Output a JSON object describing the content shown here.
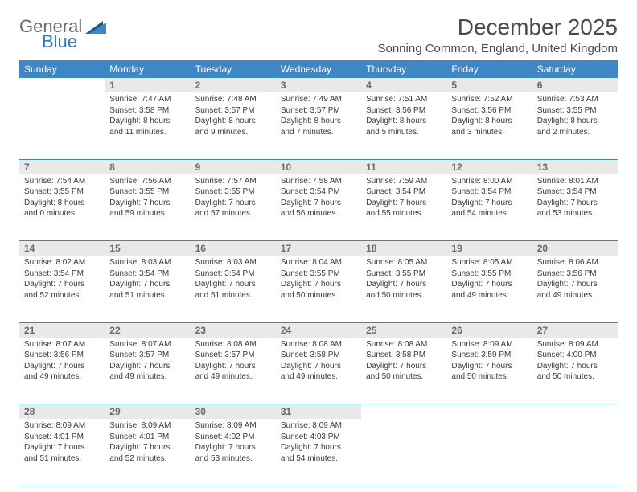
{
  "logo": {
    "general": "General",
    "blue": "Blue"
  },
  "title": "December 2025",
  "location": "Sonning Common, England, United Kingdom",
  "colors": {
    "header_bg": "#3f86c7",
    "header_fg": "#ffffff",
    "daynum_bg": "#e9e9e9",
    "border": "#3f86c7",
    "logo_gray": "#6a6a6a",
    "logo_blue": "#2b7bbd"
  },
  "weekdays": [
    "Sunday",
    "Monday",
    "Tuesday",
    "Wednesday",
    "Thursday",
    "Friday",
    "Saturday"
  ],
  "weeks": [
    [
      null,
      {
        "n": "1",
        "sr": "7:47 AM",
        "ss": "3:58 PM",
        "dl": "8 hours and 11 minutes."
      },
      {
        "n": "2",
        "sr": "7:48 AM",
        "ss": "3:57 PM",
        "dl": "8 hours and 9 minutes."
      },
      {
        "n": "3",
        "sr": "7:49 AM",
        "ss": "3:57 PM",
        "dl": "8 hours and 7 minutes."
      },
      {
        "n": "4",
        "sr": "7:51 AM",
        "ss": "3:56 PM",
        "dl": "8 hours and 5 minutes."
      },
      {
        "n": "5",
        "sr": "7:52 AM",
        "ss": "3:56 PM",
        "dl": "8 hours and 3 minutes."
      },
      {
        "n": "6",
        "sr": "7:53 AM",
        "ss": "3:55 PM",
        "dl": "8 hours and 2 minutes."
      }
    ],
    [
      {
        "n": "7",
        "sr": "7:54 AM",
        "ss": "3:55 PM",
        "dl": "8 hours and 0 minutes."
      },
      {
        "n": "8",
        "sr": "7:56 AM",
        "ss": "3:55 PM",
        "dl": "7 hours and 59 minutes."
      },
      {
        "n": "9",
        "sr": "7:57 AM",
        "ss": "3:55 PM",
        "dl": "7 hours and 57 minutes."
      },
      {
        "n": "10",
        "sr": "7:58 AM",
        "ss": "3:54 PM",
        "dl": "7 hours and 56 minutes."
      },
      {
        "n": "11",
        "sr": "7:59 AM",
        "ss": "3:54 PM",
        "dl": "7 hours and 55 minutes."
      },
      {
        "n": "12",
        "sr": "8:00 AM",
        "ss": "3:54 PM",
        "dl": "7 hours and 54 minutes."
      },
      {
        "n": "13",
        "sr": "8:01 AM",
        "ss": "3:54 PM",
        "dl": "7 hours and 53 minutes."
      }
    ],
    [
      {
        "n": "14",
        "sr": "8:02 AM",
        "ss": "3:54 PM",
        "dl": "7 hours and 52 minutes."
      },
      {
        "n": "15",
        "sr": "8:03 AM",
        "ss": "3:54 PM",
        "dl": "7 hours and 51 minutes."
      },
      {
        "n": "16",
        "sr": "8:03 AM",
        "ss": "3:54 PM",
        "dl": "7 hours and 51 minutes."
      },
      {
        "n": "17",
        "sr": "8:04 AM",
        "ss": "3:55 PM",
        "dl": "7 hours and 50 minutes."
      },
      {
        "n": "18",
        "sr": "8:05 AM",
        "ss": "3:55 PM",
        "dl": "7 hours and 50 minutes."
      },
      {
        "n": "19",
        "sr": "8:05 AM",
        "ss": "3:55 PM",
        "dl": "7 hours and 49 minutes."
      },
      {
        "n": "20",
        "sr": "8:06 AM",
        "ss": "3:56 PM",
        "dl": "7 hours and 49 minutes."
      }
    ],
    [
      {
        "n": "21",
        "sr": "8:07 AM",
        "ss": "3:56 PM",
        "dl": "7 hours and 49 minutes."
      },
      {
        "n": "22",
        "sr": "8:07 AM",
        "ss": "3:57 PM",
        "dl": "7 hours and 49 minutes."
      },
      {
        "n": "23",
        "sr": "8:08 AM",
        "ss": "3:57 PM",
        "dl": "7 hours and 49 minutes."
      },
      {
        "n": "24",
        "sr": "8:08 AM",
        "ss": "3:58 PM",
        "dl": "7 hours and 49 minutes."
      },
      {
        "n": "25",
        "sr": "8:08 AM",
        "ss": "3:58 PM",
        "dl": "7 hours and 50 minutes."
      },
      {
        "n": "26",
        "sr": "8:09 AM",
        "ss": "3:59 PM",
        "dl": "7 hours and 50 minutes."
      },
      {
        "n": "27",
        "sr": "8:09 AM",
        "ss": "4:00 PM",
        "dl": "7 hours and 50 minutes."
      }
    ],
    [
      {
        "n": "28",
        "sr": "8:09 AM",
        "ss": "4:01 PM",
        "dl": "7 hours and 51 minutes."
      },
      {
        "n": "29",
        "sr": "8:09 AM",
        "ss": "4:01 PM",
        "dl": "7 hours and 52 minutes."
      },
      {
        "n": "30",
        "sr": "8:09 AM",
        "ss": "4:02 PM",
        "dl": "7 hours and 53 minutes."
      },
      {
        "n": "31",
        "sr": "8:09 AM",
        "ss": "4:03 PM",
        "dl": "7 hours and 54 minutes."
      },
      null,
      null,
      null
    ]
  ],
  "labels": {
    "sunrise": "Sunrise:",
    "sunset": "Sunset:",
    "daylight": "Daylight:"
  }
}
